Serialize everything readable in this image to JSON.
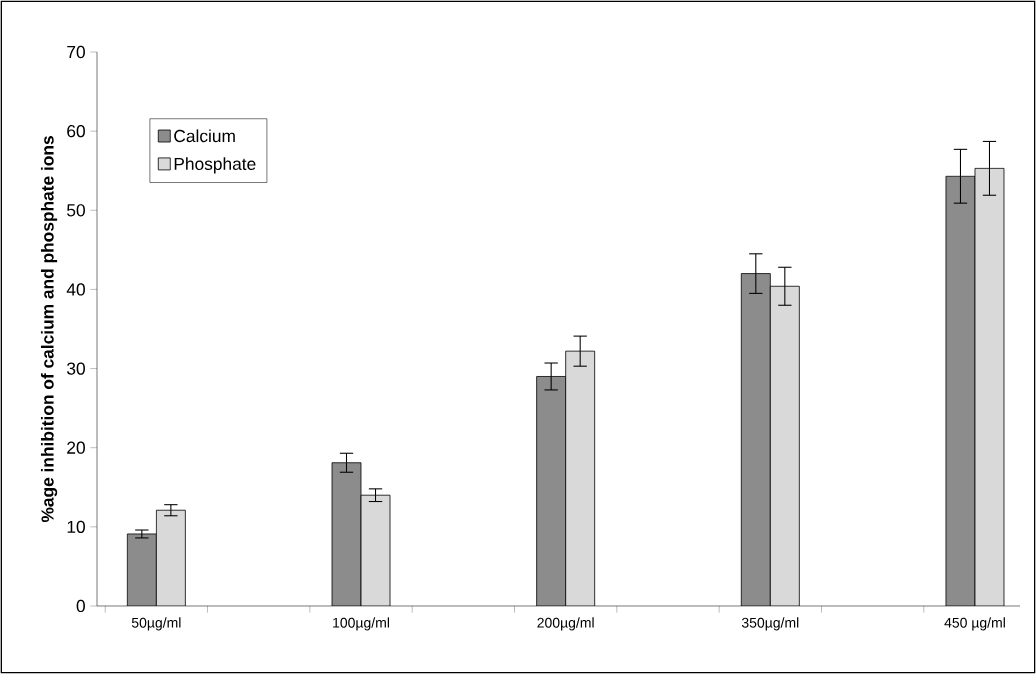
{
  "chart_data": {
    "type": "bar",
    "ylabel": "%age inhibition of calcium and phosphate ions",
    "categories": [
      "50µg/ml",
      "100µg/ml",
      "200µg/ml",
      "350µg/ml",
      "450 µg/ml"
    ],
    "series": [
      {
        "name": "Calcium",
        "color": "#8c8c8c",
        "values": [
          9.1,
          18.1,
          29.0,
          42.0,
          54.3
        ],
        "errors": [
          0.5,
          1.2,
          1.7,
          2.5,
          3.4
        ]
      },
      {
        "name": "Phosphate",
        "color": "#d9d9d9",
        "values": [
          12.1,
          14.0,
          32.2,
          40.4,
          55.3
        ],
        "errors": [
          0.7,
          0.8,
          1.9,
          2.4,
          3.4
        ]
      }
    ],
    "ylim": [
      0,
      70
    ],
    "yticks": [
      0,
      10,
      20,
      30,
      40,
      50,
      60,
      70
    ],
    "legend": "top left",
    "grid": false
  }
}
